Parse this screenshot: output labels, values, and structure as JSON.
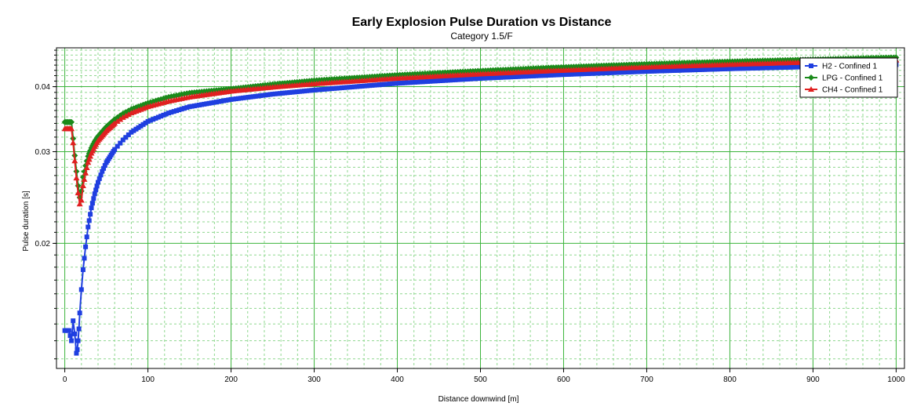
{
  "chart_data": {
    "type": "line",
    "title": "Early Explosion Pulse Duration vs Distance",
    "subtitle": "Category 1.5/F",
    "xlabel": "Distance downwind [m]",
    "ylabel": "Pulse duration [s]",
    "xlim": [
      -10,
      1010
    ],
    "ylim": [
      0.0115,
      0.0475
    ],
    "y_scale": "log",
    "x_ticks": [
      0,
      100,
      200,
      300,
      400,
      500,
      600,
      700,
      800,
      900,
      1000
    ],
    "y_ticks": [
      0.02,
      0.03,
      0.04
    ],
    "grid": true,
    "legend_position": "top-right",
    "series": [
      {
        "name": "H2 - Confined 1",
        "color": "#1f3fe0",
        "marker": "square",
        "x": [
          0,
          5,
          8,
          10,
          12,
          14,
          15,
          16,
          17,
          18,
          20,
          22,
          25,
          28,
          32,
          36,
          40,
          45,
          50,
          60,
          70,
          80,
          100,
          125,
          150,
          200,
          250,
          300,
          400,
          500,
          600,
          700,
          800,
          900,
          1000
        ],
        "y": [
          0.0136,
          0.0136,
          0.013,
          0.0142,
          0.0134,
          0.0123,
          0.0125,
          0.013,
          0.0137,
          0.0147,
          0.0163,
          0.0178,
          0.0197,
          0.0215,
          0.0234,
          0.0249,
          0.0262,
          0.0275,
          0.0286,
          0.0303,
          0.0316,
          0.0327,
          0.0343,
          0.0356,
          0.0366,
          0.0378,
          0.0387,
          0.0394,
          0.0406,
          0.0415,
          0.0422,
          0.0428,
          0.0433,
          0.0437,
          0.0441
        ]
      },
      {
        "name": "LPG - Confined 1",
        "color": "#1a8a1a",
        "marker": "diamond",
        "x": [
          0,
          4,
          8,
          10,
          12,
          14,
          16,
          18,
          20,
          22,
          25,
          28,
          32,
          36,
          40,
          50,
          60,
          70,
          80,
          100,
          125,
          150,
          200,
          250,
          300,
          400,
          500,
          600,
          700,
          800,
          900,
          1000
        ],
        "y": [
          0.0342,
          0.0342,
          0.0342,
          0.0318,
          0.0295,
          0.0275,
          0.0258,
          0.0245,
          0.0252,
          0.0268,
          0.0282,
          0.0294,
          0.0305,
          0.0314,
          0.0321,
          0.0335,
          0.0346,
          0.0355,
          0.0362,
          0.0372,
          0.0382,
          0.0389,
          0.0396,
          0.0404,
          0.0411,
          0.0421,
          0.0429,
          0.0436,
          0.0442,
          0.0447,
          0.0451,
          0.0455
        ]
      },
      {
        "name": "CH4 - Confined 1",
        "color": "#e02020",
        "marker": "triangle",
        "x": [
          0,
          4,
          8,
          10,
          12,
          14,
          16,
          18,
          20,
          22,
          25,
          28,
          32,
          36,
          40,
          50,
          60,
          70,
          80,
          100,
          125,
          150,
          200,
          250,
          300,
          400,
          500,
          600,
          700,
          800,
          900,
          1000
        ],
        "y": [
          0.0332,
          0.0332,
          0.0332,
          0.0312,
          0.0288,
          0.0267,
          0.025,
          0.0238,
          0.0242,
          0.0258,
          0.0273,
          0.0286,
          0.0298,
          0.0307,
          0.0315,
          0.0329,
          0.034,
          0.0349,
          0.0356,
          0.0366,
          0.0375,
          0.0382,
          0.0392,
          0.0399,
          0.0405,
          0.0415,
          0.0423,
          0.043,
          0.0436,
          0.0441,
          0.0446,
          0.045
        ]
      }
    ]
  }
}
